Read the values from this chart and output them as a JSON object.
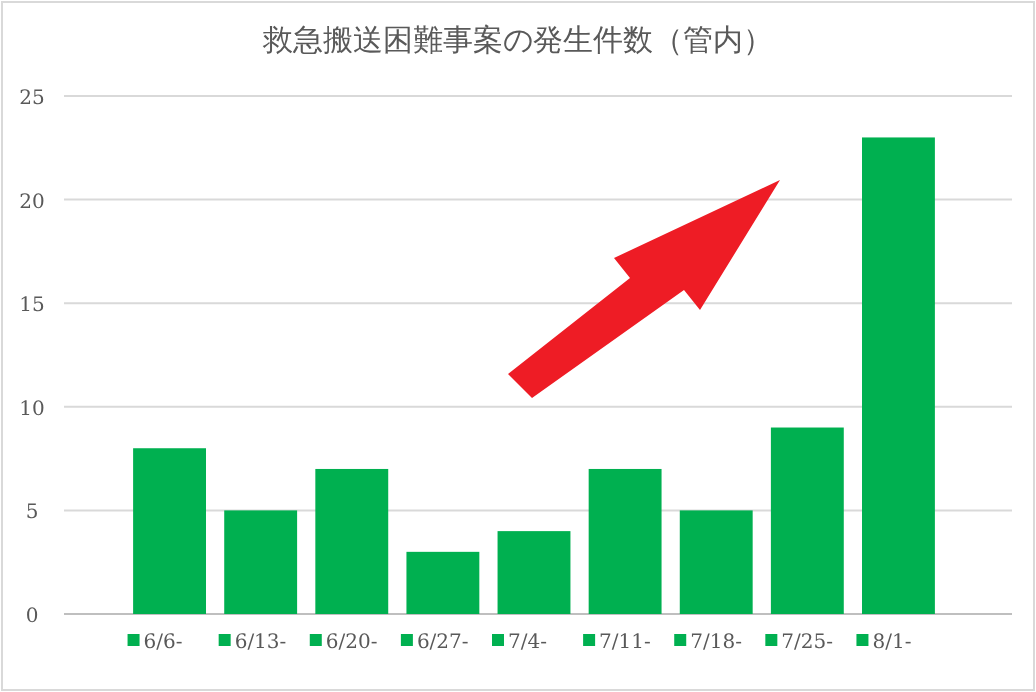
{
  "chart_data": {
    "type": "bar",
    "title": "救急搬送困難事案の発生件数（管内）",
    "categories": [
      "6/6-",
      "6/13-",
      "6/20-",
      "6/27-",
      "7/4-",
      "7/11-",
      "7/18-",
      "7/25-",
      "8/1-"
    ],
    "values": [
      8,
      5,
      7,
      3,
      4,
      7,
      5,
      9,
      23
    ],
    "color": "#00b050",
    "ylim": [
      0,
      25
    ],
    "yticks": [
      0,
      5,
      10,
      15,
      20,
      25
    ],
    "grid": "y"
  }
}
